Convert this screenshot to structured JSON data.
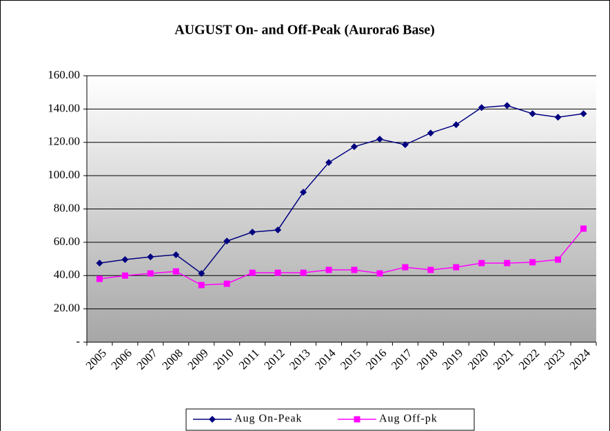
{
  "chart_data": {
    "type": "line",
    "title": "AUGUST On- and Off-Peak (Aurora6 Base)",
    "categories": [
      "2005",
      "2006",
      "2007",
      "2008",
      "2009",
      "2010",
      "2011",
      "2012",
      "2013",
      "2014",
      "2015",
      "2016",
      "2017",
      "2018",
      "2019",
      "2020",
      "2021",
      "2022",
      "2023",
      "2024"
    ],
    "series": [
      {
        "name": "Aug On-Peak",
        "color": "#000080",
        "marker": "diamond",
        "values": [
          47.5,
          49.6,
          51.2,
          52.5,
          41.3,
          60.7,
          66.1,
          67.4,
          90.1,
          107.9,
          117.4,
          121.9,
          118.6,
          125.6,
          130.6,
          140.9,
          142.1,
          137.2,
          135.1,
          137.2
        ]
      },
      {
        "name": "Aug Off-pk",
        "color": "#ff00ff",
        "marker": "square",
        "values": [
          38,
          40,
          41.3,
          42.5,
          34.3,
          35.1,
          41.7,
          41.7,
          41.7,
          43.4,
          43.4,
          41.3,
          45,
          43.4,
          45,
          47.5,
          47.5,
          48,
          49.6,
          68.2
        ]
      }
    ],
    "ylim": [
      0,
      160
    ],
    "yticks": [
      {
        "value": 0,
        "label": "-"
      },
      {
        "value": 20,
        "label": "20.00"
      },
      {
        "value": 40,
        "label": "40.00"
      },
      {
        "value": 60,
        "label": "60.00"
      },
      {
        "value": 80,
        "label": "80.00"
      },
      {
        "value": 100,
        "label": "100.00"
      },
      {
        "value": 120,
        "label": "120.00"
      },
      {
        "value": 140,
        "label": "140.00"
      },
      {
        "value": 160,
        "label": "160.00"
      }
    ],
    "grid": true,
    "legend": "bottom"
  }
}
